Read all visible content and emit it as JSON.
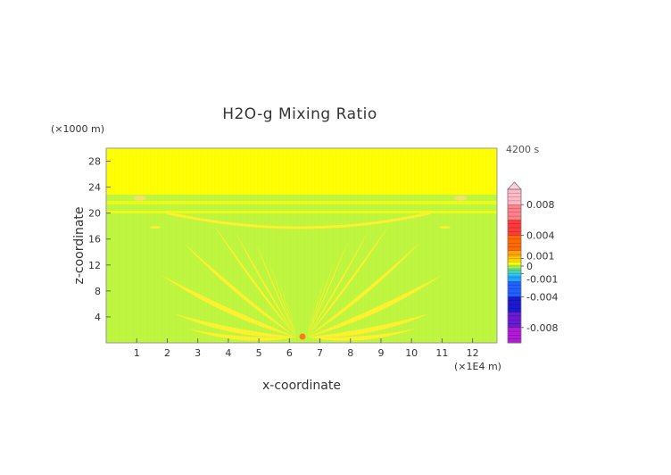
{
  "chart_data": {
    "type": "heatmap",
    "title": "H2O-g Mixing Ratio",
    "xlabel": "x-coordinate",
    "ylabel": "z-coordinate",
    "x_unit": "(×1E4 m)",
    "y_unit": "(×1000 m)",
    "time_label": "4200 s",
    "xlim": [
      0,
      12.8
    ],
    "ylim": [
      0,
      30
    ],
    "x_ticks": [
      1,
      2,
      3,
      4,
      5,
      6,
      7,
      8,
      9,
      10,
      11,
      12
    ],
    "y_ticks": [
      4,
      8,
      12,
      16,
      20,
      24,
      28
    ],
    "colorbar": {
      "range": [
        -0.01,
        0.01
      ],
      "tick_labels": [
        "0.008",
        "0.004",
        "0.001",
        "0",
        "-0.001",
        "-0.004",
        "-0.008"
      ],
      "tick_values": [
        0.008,
        0.004,
        0.001,
        0,
        -0.001,
        -0.004,
        -0.008
      ]
    },
    "background_value_upper": 0.0004,
    "background_value_lower": 0.0,
    "background_split_z": 20.5,
    "feature_value": 0.0004,
    "source_max_at": {
      "x": 6.4,
      "z": 0.7,
      "value": 0.002
    },
    "colors": {
      "upper": "#fefe00",
      "lower": "#bcf53c",
      "feature": "#fef02a",
      "source": "#ff7a1a"
    }
  }
}
